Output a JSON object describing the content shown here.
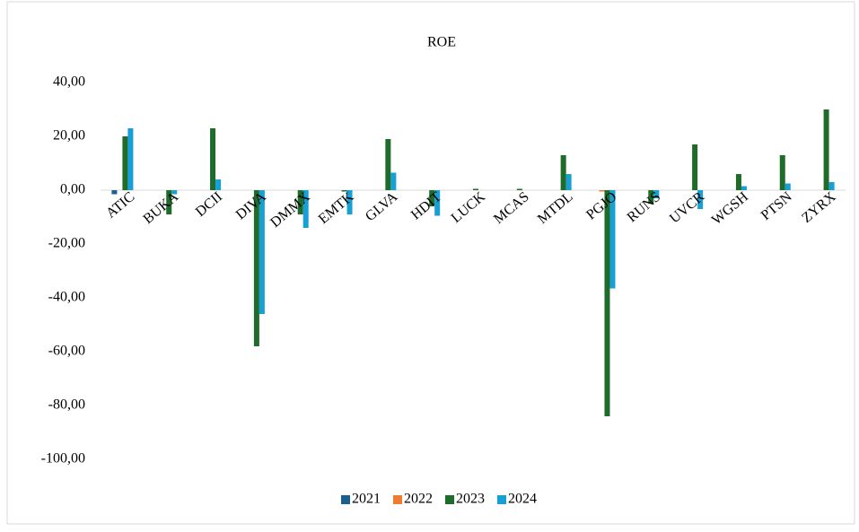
{
  "chart_data": {
    "type": "bar",
    "title": "ROE",
    "categories": [
      "ATIC",
      "BUKA",
      "DCII",
      "DIVA",
      "DMMX",
      "EMTK",
      "GLVA",
      "HDIT",
      "LUCK",
      "MCAS",
      "MTDL",
      "PGJO",
      "RUNS",
      "UVCR",
      "WGSH",
      "PTSN",
      "ZYRX"
    ],
    "series": [
      {
        "name": "2021",
        "color": "#1f5f8b",
        "values": [
          -1.5,
          0,
          0,
          0,
          0,
          0,
          0,
          0,
          0,
          0,
          0,
          0,
          0,
          0,
          0,
          0,
          0
        ]
      },
      {
        "name": "2022",
        "color": "#ed7d31",
        "values": [
          0,
          0,
          0,
          0,
          0,
          0,
          0,
          0,
          0,
          0,
          0,
          -0.5,
          0,
          0,
          0,
          0,
          0
        ]
      },
      {
        "name": "2023",
        "color": "#1e6b2a",
        "values": [
          20,
          -9,
          23,
          -58,
          -9,
          -0.5,
          19,
          -6,
          0.5,
          0.5,
          13,
          -84,
          -5,
          17,
          6,
          13,
          30
        ]
      },
      {
        "name": "2024",
        "color": "#17a0d6",
        "values": [
          23,
          -1.5,
          4,
          -46,
          -14,
          -9,
          6.5,
          -9.5,
          0,
          0,
          6,
          -36.5,
          -3,
          -7,
          1.5,
          2.5,
          3
        ]
      }
    ],
    "ylim": [
      -100,
      40
    ],
    "yticks": [
      {
        "value": 40,
        "label": "40,00"
      },
      {
        "value": 20,
        "label": "20,00"
      },
      {
        "value": 0,
        "label": "0,00"
      },
      {
        "value": -20,
        "label": "-20,00"
      },
      {
        "value": -40,
        "label": "-40,00"
      },
      {
        "value": -60,
        "label": "-60,00"
      },
      {
        "value": -80,
        "label": "-80,00"
      },
      {
        "value": -100,
        "label": "-100,00"
      }
    ],
    "legend": "bottom"
  }
}
